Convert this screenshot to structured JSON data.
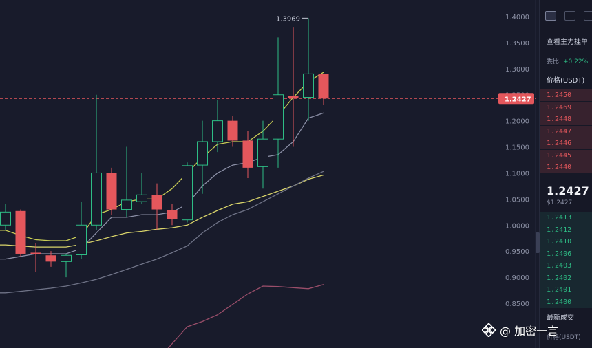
{
  "chart_data": {
    "type": "candlestick",
    "ylim": [
      0.82,
      1.41
    ],
    "yticks": [
      0.85,
      0.9,
      0.95,
      1.0,
      1.05,
      1.1,
      1.15,
      1.2,
      1.25,
      1.3,
      1.35,
      1.4
    ],
    "ytick_labels": [
      "0.8500",
      "0.9000",
      "0.9500",
      "1.0000",
      "1.0500",
      "1.1000",
      "1.1500",
      "1.2000",
      "1.2500",
      "1.3000",
      "1.3500",
      "1.4000"
    ],
    "grid": false,
    "candles": [
      {
        "o": 1.0,
        "h": 1.04,
        "l": 0.99,
        "c": 1.025
      },
      {
        "o": 1.027,
        "h": 1.03,
        "l": 0.94,
        "c": 0.945
      },
      {
        "o": 0.947,
        "h": 0.965,
        "l": 0.91,
        "c": 0.944
      },
      {
        "o": 0.942,
        "h": 0.95,
        "l": 0.92,
        "c": 0.93
      },
      {
        "o": 0.93,
        "h": 0.945,
        "l": 0.9,
        "c": 0.942
      },
      {
        "o": 0.943,
        "h": 1.045,
        "l": 0.935,
        "c": 1.0
      },
      {
        "o": 1.0,
        "h": 1.25,
        "l": 0.99,
        "c": 1.1
      },
      {
        "o": 1.1,
        "h": 1.11,
        "l": 1.02,
        "c": 1.03
      },
      {
        "o": 1.03,
        "h": 1.15,
        "l": 1.015,
        "c": 1.048
      },
      {
        "o": 1.045,
        "h": 1.1,
        "l": 1.04,
        "c": 1.058
      },
      {
        "o": 1.058,
        "h": 1.08,
        "l": 0.99,
        "c": 1.03
      },
      {
        "o": 1.029,
        "h": 1.04,
        "l": 1.0,
        "c": 1.012
      },
      {
        "o": 1.01,
        "h": 1.12,
        "l": 1.005,
        "c": 1.114
      },
      {
        "o": 1.115,
        "h": 1.2,
        "l": 1.06,
        "c": 1.16
      },
      {
        "o": 1.16,
        "h": 1.24,
        "l": 1.14,
        "c": 1.2
      },
      {
        "o": 1.2,
        "h": 1.21,
        "l": 1.15,
        "c": 1.162
      },
      {
        "o": 1.162,
        "h": 1.18,
        "l": 1.09,
        "c": 1.11
      },
      {
        "o": 1.112,
        "h": 1.2,
        "l": 1.07,
        "c": 1.165
      },
      {
        "o": 1.165,
        "h": 1.36,
        "l": 1.11,
        "c": 1.25
      },
      {
        "o": 1.247,
        "h": 1.38,
        "l": 1.15,
        "c": 1.243
      },
      {
        "o": 1.245,
        "h": 1.3969,
        "l": 1.2,
        "c": 1.29
      },
      {
        "o": 1.29,
        "h": 1.29,
        "l": 1.23,
        "c": 1.2427
      }
    ],
    "moving_averages": [
      {
        "color": "#c8cc55",
        "values": [
          0.99,
          0.98,
          0.972,
          0.97,
          0.97,
          0.98,
          1.02,
          1.03,
          1.045,
          1.05,
          1.05,
          1.07,
          1.1,
          1.13,
          1.155,
          1.16,
          1.16,
          1.18,
          1.21,
          1.245,
          1.275,
          1.293
        ]
      },
      {
        "color": "#8b8fa6",
        "values": [
          0.935,
          0.94,
          0.945,
          0.945,
          0.945,
          0.955,
          0.985,
          1.015,
          1.015,
          1.02,
          1.02,
          1.025,
          1.04,
          1.075,
          1.1,
          1.115,
          1.12,
          1.13,
          1.135,
          1.16,
          1.205,
          1.215
        ]
      },
      {
        "color": "#d9d46a",
        "values": [
          0.962,
          0.96,
          0.958,
          0.958,
          0.958,
          0.963,
          0.97,
          0.978,
          0.985,
          0.988,
          0.992,
          0.995,
          1.0,
          1.015,
          1.028,
          1.04,
          1.045,
          1.055,
          1.065,
          1.075,
          1.088,
          1.096
        ]
      },
      {
        "color": "#6f7387",
        "values": [
          0.87,
          0.873,
          0.876,
          0.879,
          0.883,
          0.889,
          0.896,
          0.905,
          0.915,
          0.925,
          0.935,
          0.947,
          0.96,
          0.985,
          1.005,
          1.02,
          1.03,
          1.045,
          1.06,
          1.075,
          1.09,
          1.103
        ]
      }
    ],
    "sub_indicator": {
      "color": "#9a4e6a",
      "values": [
        null,
        null,
        null,
        null,
        null,
        null,
        null,
        null,
        null,
        null,
        null,
        null,
        0.805,
        0.815,
        0.828,
        0.848,
        0.868,
        0.883,
        0.882,
        0.88,
        0.878,
        0.886
      ]
    },
    "current_price": 1.2427,
    "current_price_label": "1.2427",
    "peak_label": "1.3969"
  },
  "sidebar": {
    "title": "查看主力挂单",
    "ratio_label": "委比",
    "ratio_value": "+0.22%",
    "header": "价格(USDT)",
    "asks": [
      "1.2450",
      "1.2469",
      "1.2448",
      "1.2447",
      "1.2446",
      "1.2445",
      "1.2440"
    ],
    "last_price": "1.2427",
    "last_price_sub": "$1.2427",
    "bids": [
      "1.2413",
      "1.2412",
      "1.2410",
      "1.2406",
      "1.2403",
      "1.2402",
      "1.2401",
      "1.2400"
    ],
    "trades_label": "最新成交",
    "trades_sub": "价格(USDT)"
  },
  "watermark": {
    "text": "@ 加密一言"
  }
}
